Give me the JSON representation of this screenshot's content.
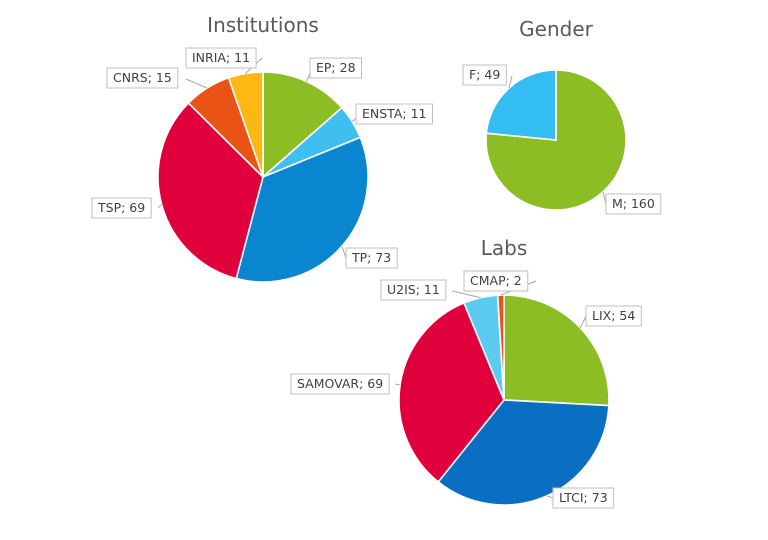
{
  "chart_data": [
    {
      "type": "pie",
      "title": "Institutions",
      "slices": [
        {
          "label": "EP",
          "value": 28,
          "color": "#8DBD25"
        },
        {
          "label": "ENSTA",
          "value": 11,
          "color": "#3FBFEF"
        },
        {
          "label": "TP",
          "value": 73,
          "color": "#0A86D0"
        },
        {
          "label": "TSP",
          "value": 69,
          "color": "#E0003C"
        },
        {
          "label": "CNRS",
          "value": 15,
          "color": "#EA5316"
        },
        {
          "label": "INRIA",
          "value": 11,
          "color": "#FDB813"
        }
      ],
      "labels": [
        "EP; 28",
        "ENSTA; 11",
        "TP; 73",
        "TSP; 69",
        "CNRS; 15",
        "INRIA; 11"
      ]
    },
    {
      "type": "pie",
      "title": "Gender",
      "slices": [
        {
          "label": "M",
          "value": 160,
          "color": "#8DBD25"
        },
        {
          "label": "F",
          "value": 49,
          "color": "#33BDF2"
        }
      ],
      "labels": [
        "M; 160",
        "F; 49"
      ]
    },
    {
      "type": "pie",
      "title": "Labs",
      "slices": [
        {
          "label": "LIX",
          "value": 54,
          "color": "#8DBD25"
        },
        {
          "label": "LTCI",
          "value": 73,
          "color": "#0A6FC2"
        },
        {
          "label": "SAMOVAR",
          "value": 69,
          "color": "#E0003C"
        },
        {
          "label": "U2IS",
          "value": 11,
          "color": "#5BCBF0"
        },
        {
          "label": "CMAP",
          "value": 2,
          "color": "#EA5316"
        }
      ],
      "labels": [
        "LIX; 54",
        "LTCI; 73",
        "SAMOVAR; 69",
        "U2IS; 11",
        "CMAP; 2"
      ]
    }
  ]
}
